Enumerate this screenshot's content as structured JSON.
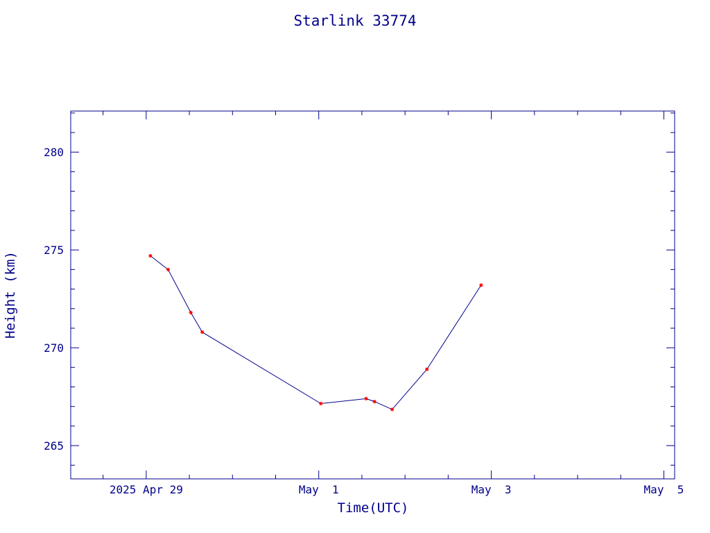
{
  "chart_data": {
    "type": "line",
    "title": "Starlink 33774",
    "xlabel": "Time(UTC)",
    "ylabel": "Height (km)",
    "x_unit": "date",
    "xlim": [
      "2025-04-28T03:00",
      "2025-05-05T03:00"
    ],
    "ylim": [
      263.3,
      282.1
    ],
    "x_ticks": [
      {
        "label": "2025 Apr 29",
        "value": "2025-04-29T00:00"
      },
      {
        "label": "May  1",
        "value": "2025-05-01T00:00"
      },
      {
        "label": "May  3",
        "value": "2025-05-03T00:00"
      },
      {
        "label": "May  5",
        "value": "2025-05-05T00:00"
      }
    ],
    "y_ticks": [
      265,
      270,
      275,
      280
    ],
    "series": [
      {
        "line_color": "#00008b",
        "marker_color": "#ff0000",
        "points": [
          {
            "x": "2025-04-29T01:10",
            "y": 274.7
          },
          {
            "x": "2025-04-29T06:05",
            "y": 274.0
          },
          {
            "x": "2025-04-29T12:25",
            "y": 271.8
          },
          {
            "x": "2025-04-29T15:35",
            "y": 270.8
          },
          {
            "x": "2025-05-01T00:35",
            "y": 267.15
          },
          {
            "x": "2025-05-01T13:10",
            "y": 267.4
          },
          {
            "x": "2025-05-01T15:30",
            "y": 267.25
          },
          {
            "x": "2025-05-01T20:25",
            "y": 266.85
          },
          {
            "x": "2025-05-02T06:05",
            "y": 268.9
          },
          {
            "x": "2025-05-02T21:10",
            "y": 273.2
          }
        ]
      }
    ]
  }
}
